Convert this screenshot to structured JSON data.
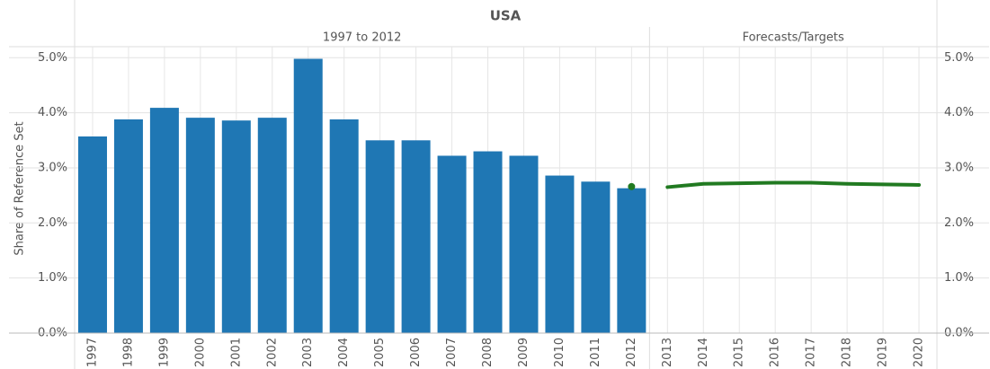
{
  "chart_data": {
    "type": "bar-line",
    "title": "USA",
    "y_label": "Share of Reference Set",
    "ylim": [
      0,
      5.2
    ],
    "yticks": [
      {
        "value": 0,
        "label": "0.0%"
      },
      {
        "value": 1,
        "label": "1.0%"
      },
      {
        "value": 2,
        "label": "2.0%"
      },
      {
        "value": 3,
        "label": "3.0%"
      },
      {
        "value": 4,
        "label": "4.0%"
      },
      {
        "value": 5,
        "label": "5.0%"
      }
    ],
    "bar_color": "#1f77b4",
    "line_color": "#217a21",
    "grid": true,
    "panels": [
      {
        "title": "1997 to 2012",
        "categories": [
          "1997",
          "1998",
          "1999",
          "2000",
          "2001",
          "2002",
          "2003",
          "2004",
          "2005",
          "2006",
          "2007",
          "2008",
          "2009",
          "2010",
          "2011",
          "2012"
        ],
        "bar_values": [
          3.57,
          3.88,
          4.09,
          3.91,
          3.86,
          3.91,
          4.98,
          3.88,
          3.5,
          3.5,
          3.22,
          3.3,
          3.22,
          2.86,
          2.75,
          2.63
        ],
        "line_values": [
          null,
          null,
          null,
          null,
          null,
          null,
          null,
          null,
          null,
          null,
          null,
          null,
          null,
          null,
          null,
          2.66
        ]
      },
      {
        "title": "Forecasts/Targets",
        "categories": [
          "2013",
          "2014",
          "2015",
          "2016",
          "2017",
          "2018",
          "2019",
          "2020"
        ],
        "bar_values": [
          null,
          null,
          null,
          null,
          null,
          null,
          null,
          null
        ],
        "line_values": [
          2.65,
          2.71,
          2.72,
          2.73,
          2.73,
          2.71,
          2.7,
          2.69
        ]
      }
    ]
  }
}
